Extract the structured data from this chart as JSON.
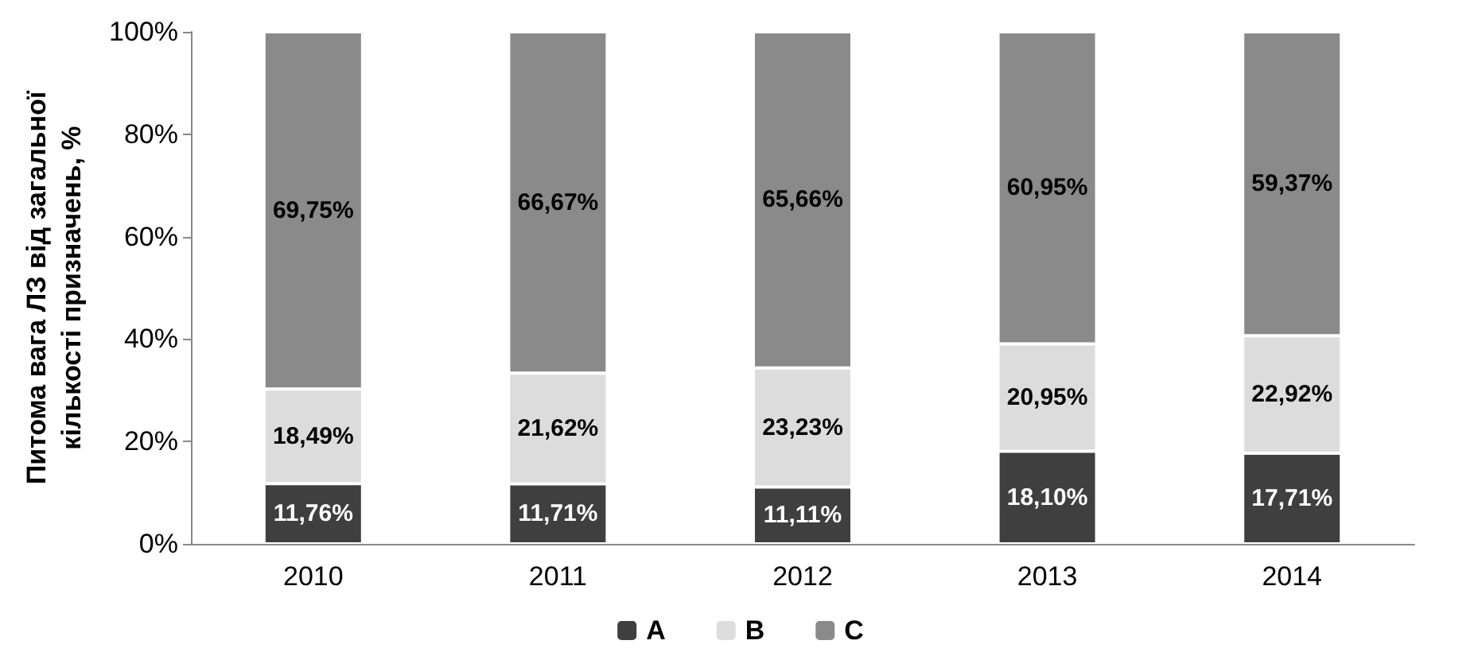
{
  "chart_data": {
    "type": "bar",
    "stacked": true,
    "ylabel": "Питома вага ЛЗ від загальної кількості призначень, %",
    "categories": [
      "2010",
      "2011",
      "2012",
      "2013",
      "2014"
    ],
    "series": [
      {
        "name": "A",
        "color": "#3f3f3f",
        "values": [
          11.76,
          11.71,
          11.11,
          18.1,
          17.71
        ],
        "value_labels": [
          "11,76%",
          "11,71%",
          "11,11%",
          "18,10%",
          "17,71%"
        ]
      },
      {
        "name": "B",
        "color": "#dcdcdc",
        "values": [
          18.49,
          21.62,
          23.23,
          20.95,
          22.92
        ],
        "value_labels": [
          "18,49%",
          "21,62%",
          "23,23%",
          "20,95%",
          "22,92%"
        ]
      },
      {
        "name": "C",
        "color": "#8a8a8a",
        "values": [
          69.75,
          66.67,
          65.66,
          60.95,
          59.37
        ],
        "value_labels": [
          "69,75%",
          "66,67%",
          "65,66%",
          "60,95%",
          "59,37%"
        ]
      }
    ],
    "ylim": [
      0,
      100
    ],
    "yticks": [
      {
        "value": 0,
        "label": "0%"
      },
      {
        "value": 20,
        "label": "20%"
      },
      {
        "value": 40,
        "label": "40%"
      },
      {
        "value": 60,
        "label": "60%"
      },
      {
        "value": 80,
        "label": "80%"
      },
      {
        "value": 100,
        "label": "100%"
      }
    ],
    "grid": false,
    "legend": "bottom"
  }
}
